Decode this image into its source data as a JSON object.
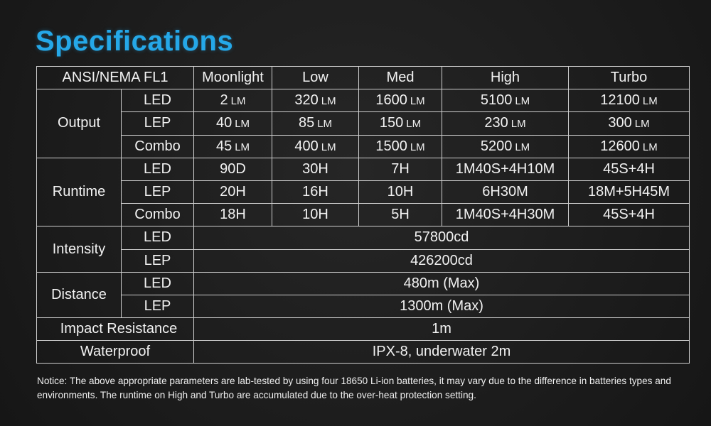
{
  "title": "Specifications",
  "table": {
    "header": {
      "label": "ANSI/NEMA FL1",
      "modes": [
        "Moonlight",
        "Low",
        "Med",
        "High",
        "Turbo"
      ]
    },
    "unit": "LM",
    "output": {
      "label": "Output",
      "rows": [
        {
          "source": "LED",
          "values": [
            "2",
            "320",
            "1600",
            "5100",
            "12100"
          ]
        },
        {
          "source": "LEP",
          "values": [
            "40",
            "85",
            "150",
            "230",
            "300"
          ]
        },
        {
          "source": "Combo",
          "values": [
            "45",
            "400",
            "1500",
            "5200",
            "12600"
          ]
        }
      ]
    },
    "runtime": {
      "label": "Runtime",
      "rows": [
        {
          "source": "LED",
          "values": [
            "90D",
            "30H",
            "7H",
            "1M40S+4H10M",
            "45S+4H"
          ]
        },
        {
          "source": "LEP",
          "values": [
            "20H",
            "16H",
            "10H",
            "6H30M",
            "18M+5H45M"
          ]
        },
        {
          "source": "Combo",
          "values": [
            "18H",
            "10H",
            "5H",
            "1M40S+4H30M",
            "45S+4H"
          ]
        }
      ]
    },
    "intensity": {
      "label": "Intensity",
      "rows": [
        {
          "source": "LED",
          "value": "57800cd"
        },
        {
          "source": "LEP",
          "value": "426200cd"
        }
      ]
    },
    "distance": {
      "label": "Distance",
      "rows": [
        {
          "source": "LED",
          "value": "480m (Max)"
        },
        {
          "source": "LEP",
          "value": "1300m (Max)"
        }
      ]
    },
    "impact": {
      "label": "Impact Resistance",
      "value": "1m"
    },
    "waterproof": {
      "label": "Waterproof",
      "value": "IPX-8, underwater 2m"
    }
  },
  "notice": "Notice: The above appropriate parameters are lab-tested by using four 18650 Li-ion batteries, it may vary due to the difference in batteries types and environments. The runtime on High and Turbo are accumulated due to the over-heat protection setting.",
  "colors": {
    "title": "#25a8e8",
    "background": "#1c1c1c",
    "text": "#f2f2f2",
    "border": "#cfcfcf"
  }
}
